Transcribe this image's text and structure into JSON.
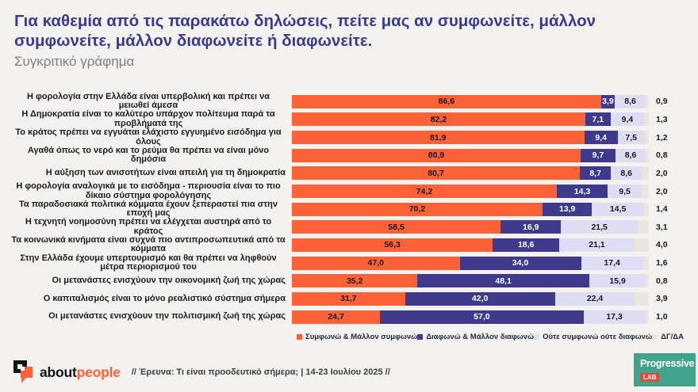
{
  "header": {
    "title": "Για καθεμία από τις παρακάτω δηλώσεις, πείτε μας αν συμφωνείτε, μάλλον συμφωνείτε, μάλλον διαφωνείτε ή διαφωνείτε.",
    "subtitle": "Συγκριτικό γράφημα",
    "title_color": "#3B3A8E",
    "subtitle_color": "#7F7F7F"
  },
  "chart_data": {
    "type": "bar",
    "orientation": "horizontal-stacked",
    "xlim": [
      0,
      100
    ],
    "grid": false,
    "legend_position": "bottom",
    "value_decimal_separator": ",",
    "categories": [
      "Η φορολογία στην Ελλάδα είναι υπερβολική και πρέπει να μειωθεί άμεσα",
      "Η Δημοκρατία είναι το καλύτερο υπάρχον πολίτευμα παρά τα προβλήματά της",
      "Το κράτος πρέπει να εγγυάται ελάχιστο εγγυημένο εισόδημα για όλους",
      "Αγαθά όπως το νερό και το ρεύμα θα πρέπει να είναι μόνο δημόσια",
      "Η αύξηση των ανισοτήτων είναι απειλή για τη δημοκρατία",
      "Η φορολογία αναλογικά με το εισόδημα - περιουσία είναι το πιο δίκαιο σύστημα φορολόγησης",
      "Τα παραδοσιακά πολιτικά κόμματα έχουν ξεπεραστεί πια στην εποχή μας",
      "Η τεχνητή νοημοσύνη πρέπει να ελέγχεται αυστηρά από το κράτος",
      "Τα κοινωνικά κινήματα είναι συχνά πιο αντιπροσωπευτικά από τα κόμματα",
      "Στην Ελλάδα έχουμε υπερτουρισμό και θα πρέπει να ληφθούν μέτρα περιορισμού του",
      "Οι μετανάστες ενισχύουν την οικονομική ζωή της χώρας",
      "Ο καπιταλισμός είναι το μόνο ρεαλιστικό σύστημα σήμερα",
      "Οι μετανάστες ενισχύουν την πολιτισμική ζωή της χώρας"
    ],
    "series": [
      {
        "key": "agree",
        "name": "Συμφωνώ & Μάλλον συμφωνώ",
        "color": "#FB6238",
        "label_color": "#1a1a1a",
        "values": [
          86.6,
          82.2,
          81.9,
          80.9,
          80.7,
          74.2,
          70.2,
          58.5,
          56.3,
          47.0,
          35.2,
          31.7,
          24.7
        ]
      },
      {
        "key": "disagree",
        "name": "Διαφωνώ & Μάλλον διαφωνώ",
        "color": "#3F3A8C",
        "label_color": "#ffffff",
        "values": [
          3.9,
          7.1,
          9.4,
          9.7,
          8.7,
          14.3,
          13.9,
          16.9,
          18.6,
          34.0,
          48.1,
          42.0,
          57.0
        ]
      },
      {
        "key": "neither",
        "name": "Ούτε συμφωνώ ούτε διαφωνώ",
        "color": "#DFDDF3",
        "label_color": "#1a1a1a",
        "values": [
          8.6,
          9.4,
          7.5,
          8.6,
          8.6,
          9.5,
          14.5,
          21.5,
          21.1,
          17.4,
          15.9,
          22.4,
          17.3
        ]
      },
      {
        "key": "dk",
        "name": "ΔΓ/ΔΑ",
        "color": "#EAE6DD",
        "label_color": "#1a1a1a",
        "label_outside": true,
        "values": [
          0.9,
          1.3,
          1.2,
          0.8,
          2.0,
          2.0,
          1.4,
          3.1,
          4.0,
          1.6,
          0.8,
          3.9,
          1.0
        ]
      }
    ]
  },
  "footer": {
    "brand_black": "about",
    "brand_orange": "people",
    "brand_orange_color": "#FB6238",
    "research_text": "// Έρευνα: Τι είναι προοδευτικό σήμερα; | 14-23 Ιουλίου 2025 //",
    "progressive_name": "Progressive",
    "progressive_lab": "LAB",
    "progressive_bg": "#41A38C",
    "lab_bg": "#E04B39"
  }
}
